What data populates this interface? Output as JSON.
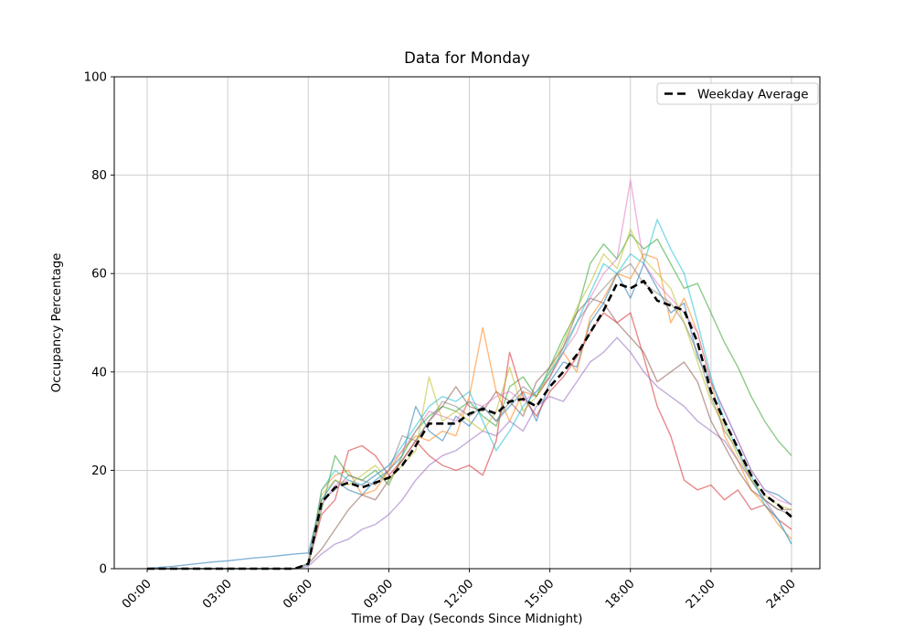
{
  "chart_data": {
    "type": "line",
    "title": "Data for Monday",
    "xlabel": "Time of Day (Seconds Since Midnight)",
    "ylabel": "Occupancy Percentage",
    "ylim": [
      0,
      100
    ],
    "xlim_hours": [
      0,
      24
    ],
    "grid": true,
    "grid_color": "#c9c9c9",
    "x_ticks_hours": [
      0,
      3,
      6,
      9,
      12,
      15,
      18,
      21,
      24
    ],
    "x_tick_labels": [
      "00:00",
      "03:00",
      "06:00",
      "09:00",
      "12:00",
      "15:00",
      "18:00",
      "21:00",
      "24:00"
    ],
    "y_ticks": [
      0,
      20,
      40,
      60,
      80,
      100
    ],
    "y_tick_labels": [
      "0",
      "20",
      "40",
      "60",
      "80",
      "100"
    ],
    "legend": {
      "label": "Weekday Average",
      "position": "top-right"
    },
    "x_hours": [
      0,
      0.5,
      1,
      1.5,
      2,
      2.5,
      3,
      3.5,
      4,
      4.5,
      5,
      5.5,
      6,
      6.5,
      7,
      7.5,
      8,
      8.5,
      9,
      9.5,
      10,
      10.5,
      11,
      11.5,
      12,
      12.5,
      13,
      13.5,
      14,
      14.5,
      15,
      15.5,
      16,
      16.5,
      17,
      17.5,
      18,
      18.5,
      19,
      19.5,
      20,
      20.5,
      21,
      21.5,
      22,
      22.5,
      23,
      23.5,
      24
    ],
    "average": {
      "name": "Weekday Average",
      "color": "#000000",
      "dashed": true,
      "values": [
        0,
        0,
        0,
        0,
        0,
        0,
        0,
        0,
        0,
        0,
        0,
        0,
        1,
        13.5,
        16.5,
        17.5,
        16.5,
        17.5,
        18.5,
        21,
        25,
        29.5,
        29.5,
        29.5,
        31.5,
        32.5,
        31.5,
        34,
        34.5,
        33,
        37,
        40,
        43.5,
        48,
        52.5,
        58,
        57,
        58.5,
        54.5,
        53.5,
        52.5,
        46,
        36,
        30,
        24.5,
        19,
        15,
        13,
        10.5
      ]
    },
    "series": [
      {
        "name": "line-1",
        "color": "#1f77b4",
        "values": [
          0,
          0.3,
          0.5,
          0.8,
          1.1,
          1.4,
          1.6,
          1.9,
          2.2,
          2.4,
          2.7,
          3,
          3.2,
          14,
          18,
          16,
          15,
          18,
          20,
          23,
          33,
          28,
          26,
          31,
          29,
          33,
          30,
          33,
          36,
          30,
          38,
          42,
          41,
          50,
          54,
          60,
          55,
          62,
          57,
          52,
          54,
          43,
          38,
          32,
          26,
          20,
          16,
          15,
          13
        ]
      },
      {
        "name": "line-2",
        "color": "#ff7f0e",
        "values": [
          0,
          0,
          0,
          0,
          0,
          0,
          0,
          0,
          0,
          0,
          0,
          0,
          1,
          16,
          19,
          20,
          15,
          16,
          20,
          24,
          27,
          26,
          28,
          27,
          35,
          49,
          36,
          30,
          36,
          35,
          39,
          44,
          40,
          51,
          55,
          60,
          59,
          64,
          63,
          50,
          55,
          48,
          38,
          27,
          22,
          16,
          13,
          9,
          6
        ]
      },
      {
        "name": "line-3",
        "color": "#2ca02c",
        "values": [
          0,
          0,
          0,
          0,
          0,
          0,
          0,
          0,
          0,
          0,
          0,
          0,
          1,
          12,
          23,
          19,
          18,
          20,
          17,
          23,
          28,
          31,
          33,
          32,
          34,
          31,
          29,
          37,
          39,
          35,
          41,
          47,
          52,
          62,
          66,
          63,
          68,
          65,
          67,
          62,
          57,
          58,
          52,
          46,
          41,
          35,
          30,
          26,
          23
        ]
      },
      {
        "name": "line-4",
        "color": "#d62728",
        "values": [
          0,
          0,
          0,
          0,
          0,
          0,
          0,
          0,
          0,
          0,
          0,
          0,
          1,
          11,
          14,
          24,
          25,
          23,
          19,
          22,
          26,
          23,
          21,
          20,
          21,
          19,
          26,
          44,
          35,
          31,
          36,
          39,
          43,
          48,
          52,
          50,
          52,
          43,
          33,
          27,
          18,
          16,
          17,
          14,
          16,
          12,
          13,
          10,
          8
        ]
      },
      {
        "name": "line-5",
        "color": "#9467bd",
        "values": [
          0,
          0,
          0,
          0,
          0,
          0,
          0,
          0,
          0,
          0,
          0,
          0,
          0.5,
          3,
          5,
          6,
          8,
          9,
          11,
          14,
          18,
          21,
          23,
          24,
          26,
          28,
          27,
          30,
          28,
          33,
          35,
          34,
          38,
          42,
          44,
          47,
          44,
          40,
          37,
          35,
          33,
          30,
          28,
          26,
          22,
          18,
          14,
          10,
          5
        ]
      },
      {
        "name": "line-6",
        "color": "#8c564b",
        "values": [
          0,
          0,
          0,
          0,
          0,
          0,
          0,
          0,
          0,
          0,
          0,
          0,
          1,
          4,
          8,
          12,
          15,
          14,
          18,
          22,
          26,
          30,
          33,
          37,
          33,
          32,
          36,
          34,
          31,
          38,
          41,
          45,
          52,
          55,
          54,
          50,
          47,
          44,
          38,
          40,
          42,
          38,
          30,
          25,
          20,
          16,
          14,
          12,
          12
        ]
      },
      {
        "name": "line-7",
        "color": "#e377c2",
        "values": [
          0,
          0,
          0,
          0,
          0,
          0,
          0,
          0,
          0,
          0,
          0,
          0,
          1,
          13,
          17,
          18,
          17,
          19,
          21,
          24,
          28,
          32,
          31,
          30,
          34,
          33,
          35,
          36,
          34,
          36,
          39,
          44,
          48,
          55,
          60,
          63,
          79,
          62,
          58,
          55,
          52,
          48,
          38,
          32,
          26,
          20,
          16,
          14,
          13
        ]
      },
      {
        "name": "line-8",
        "color": "#7f7f7f",
        "values": [
          0,
          0,
          0,
          0,
          0,
          0,
          0,
          0,
          0,
          0,
          0,
          0,
          1,
          14,
          16,
          19,
          18,
          17,
          20,
          27,
          26,
          30,
          34,
          33,
          31,
          33,
          30,
          34,
          37,
          35,
          39,
          45,
          50,
          54,
          57,
          60,
          62,
          58,
          56,
          54,
          50,
          44,
          35,
          28,
          24,
          18,
          14,
          12,
          11
        ]
      },
      {
        "name": "line-9",
        "color": "#bcbd22",
        "values": [
          0,
          0,
          0,
          0,
          0,
          0,
          0,
          0,
          0,
          0,
          0,
          0,
          1,
          15,
          18,
          17,
          19,
          21,
          18,
          21,
          24,
          39,
          30,
          32,
          30,
          28,
          32,
          41,
          32,
          35,
          40,
          46,
          53,
          58,
          64,
          61,
          69,
          63,
          60,
          57,
          50,
          42,
          34,
          29,
          23,
          18,
          15,
          13,
          12
        ]
      },
      {
        "name": "line-10",
        "color": "#17becf",
        "values": [
          0,
          0,
          0,
          0,
          0,
          0,
          0,
          0,
          0,
          0,
          0,
          0,
          1,
          16,
          20,
          18,
          17,
          19,
          21,
          25,
          29,
          33,
          35,
          34,
          36,
          30,
          24,
          28,
          33,
          36,
          40,
          44,
          50,
          56,
          62,
          60,
          64,
          62,
          71,
          65,
          60,
          50,
          39,
          30,
          24,
          19,
          13,
          10,
          5
        ]
      }
    ]
  }
}
